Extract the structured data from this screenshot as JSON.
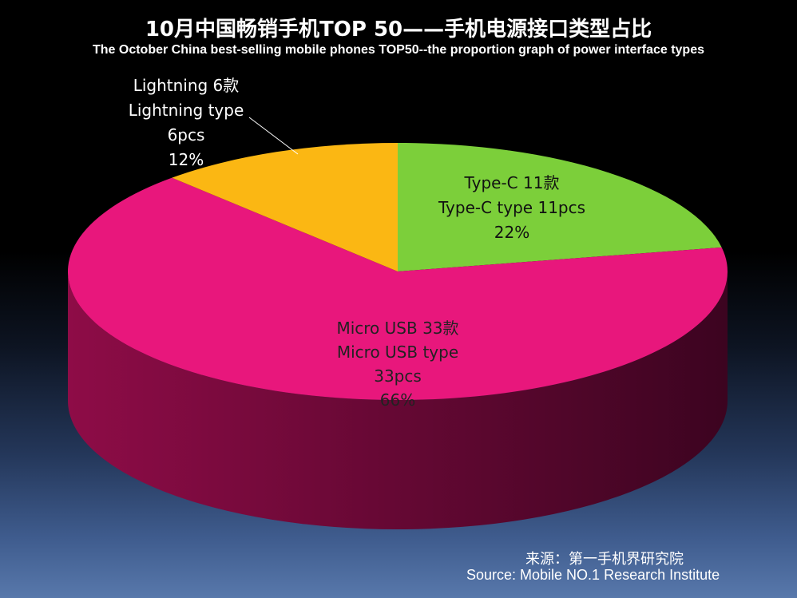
{
  "title": "10月中国畅销手机TOP 50——手机电源接口类型占比",
  "subtitle": "The October China best-selling mobile phones TOP50--the proportion graph of power interface types",
  "source": {
    "cn": "来源：第一手机界研究院",
    "en": "Source: Mobile NO.1 Research Institute"
  },
  "chart_data": {
    "type": "pie",
    "title": "10月中国畅销手机TOP 50——手机电源接口类型占比",
    "subtitle": "The October China best-selling mobile phones TOP50--the proportion graph of power interface types",
    "start": "12 o'clock, clockwise",
    "slices": [
      {
        "category": "Type-C",
        "count": 11,
        "percent": 22,
        "color": "#7ccf3a",
        "side_color": "#4e8a20",
        "label_lines": [
          "Type-C 11款",
          "Type-C type  11pcs",
          "22%"
        ]
      },
      {
        "category": "Micro USB",
        "count": 33,
        "percent": 66,
        "color": "#e8177c",
        "side_color": "#8e0c47",
        "label_lines": [
          "Micro USB 33款",
          "Micro USB type",
          "33pcs",
          "66%"
        ]
      },
      {
        "category": "Lightning",
        "count": 6,
        "percent": 12,
        "color": "#fbb713",
        "side_color": "#a57205",
        "label_lines": [
          "Lightning 6款",
          "Lightning type",
          "6pcs",
          "12%"
        ]
      }
    ]
  }
}
